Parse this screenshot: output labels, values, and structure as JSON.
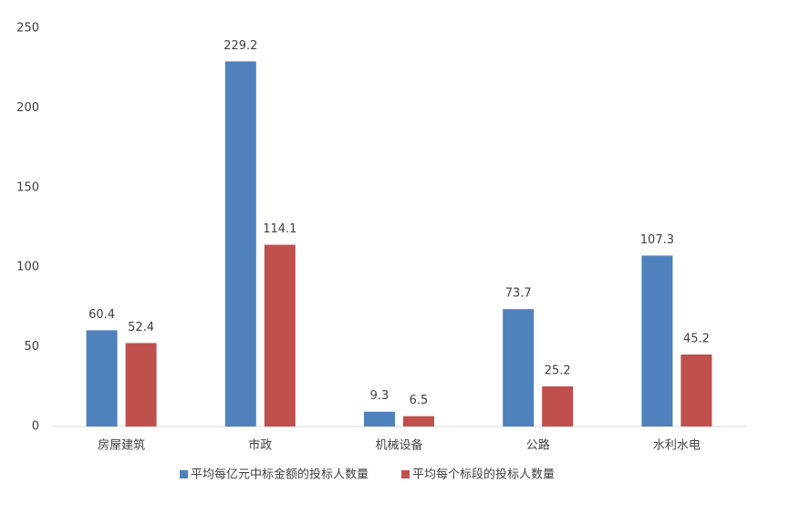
{
  "chart_data": {
    "type": "bar",
    "categories": [
      "房屋建筑",
      "市政",
      "机械设备",
      "公路",
      "水利水电"
    ],
    "series": [
      {
        "name": "平均每亿元中标金额的投标人数量",
        "color": "#4f81bd",
        "values": [
          60.4,
          229.2,
          9.3,
          73.7,
          107.3
        ]
      },
      {
        "name": "平均每个标段的投标人数量",
        "color": "#c0504d",
        "values": [
          52.4,
          114.1,
          6.5,
          25.2,
          45.2
        ]
      }
    ],
    "ylim": [
      0,
      250
    ],
    "yticks": [
      0,
      50,
      100,
      150,
      200,
      250
    ],
    "grid": false,
    "legend": "bottom",
    "data_labels": true
  }
}
